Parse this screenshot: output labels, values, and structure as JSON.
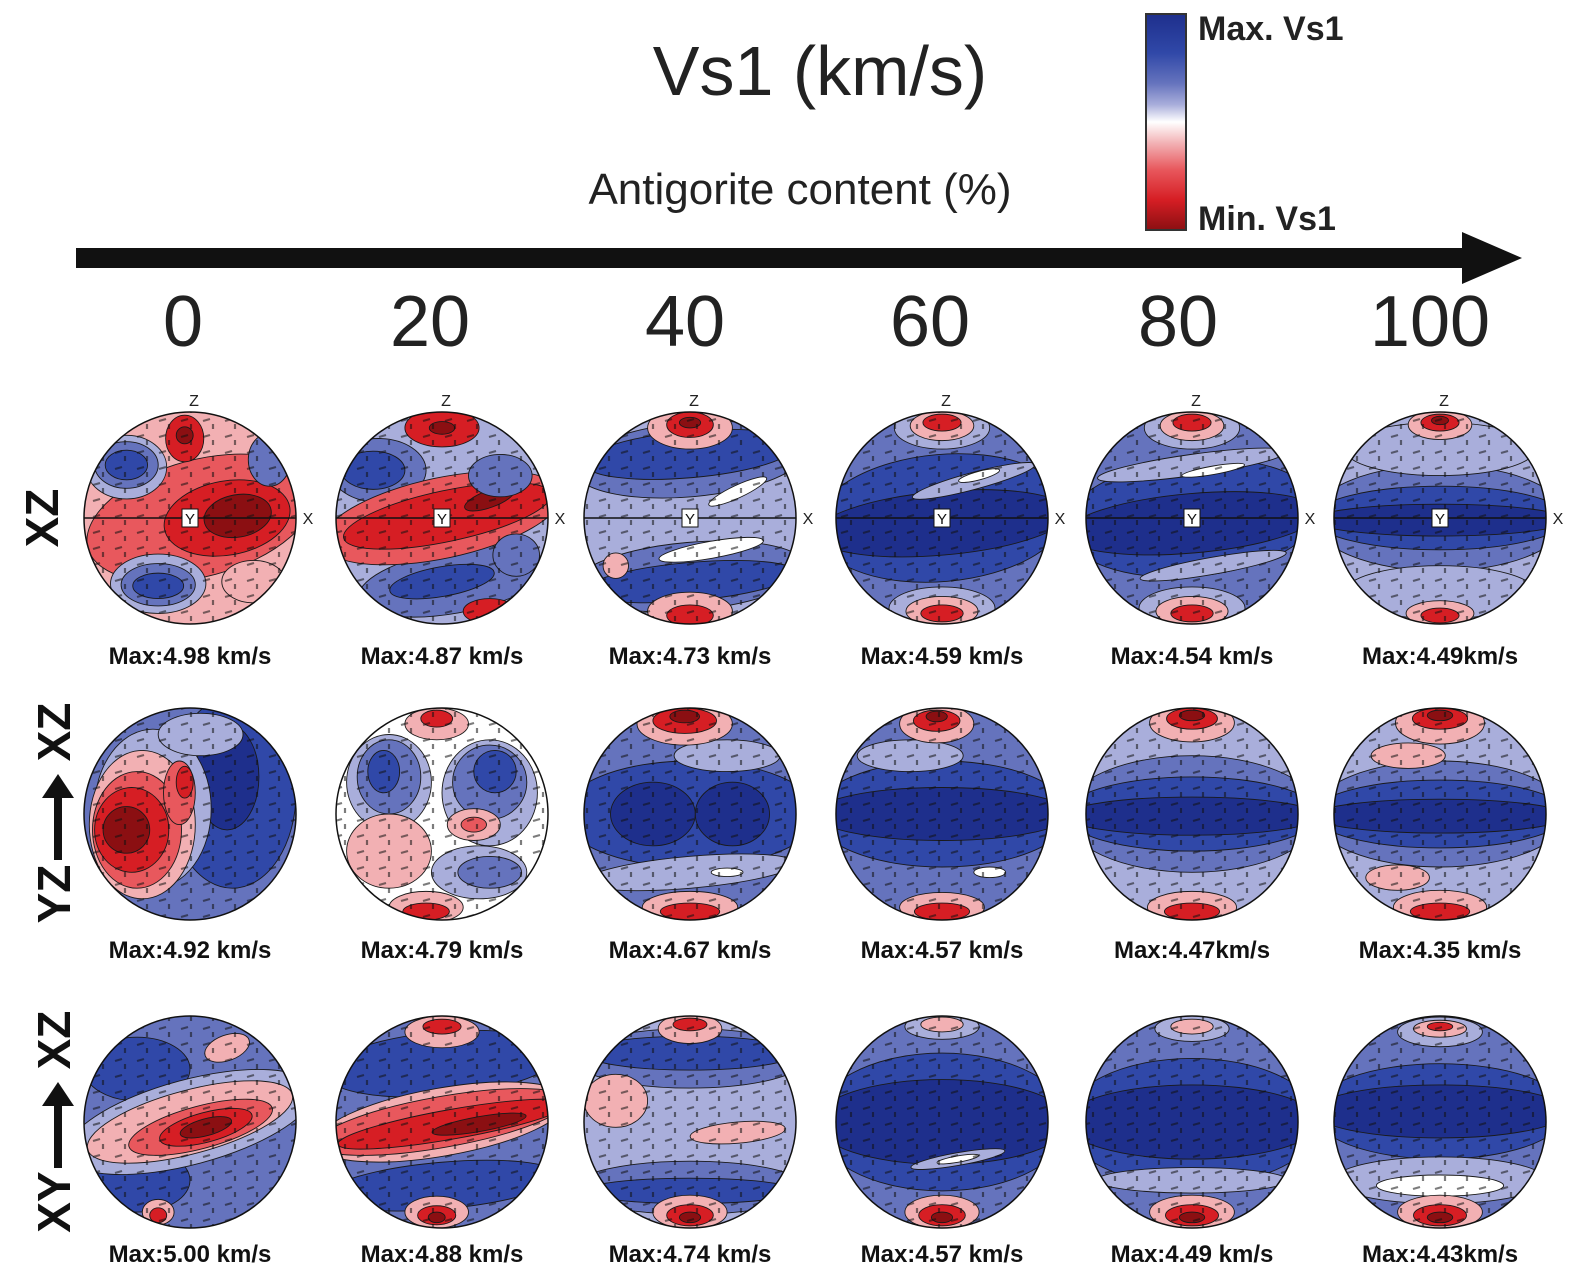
{
  "title": "Vs1 (km/s)",
  "subtitle": "Antigorite content (%)",
  "colorbar": {
    "max_label": "Max. Vs1",
    "min_label": "Min. Vs1",
    "colors": [
      "#1e2f8c",
      "#3048a8",
      "#6573bd",
      "#a9aedb",
      "#ffffff",
      "#f2b0b3",
      "#e8585d",
      "#d61e24",
      "#8b0f12"
    ]
  },
  "antigorite_ticks": [
    "0",
    "20",
    "40",
    "60",
    "80",
    "100"
  ],
  "axis_labels": {
    "z": "Z",
    "x": "X",
    "y": "Y"
  },
  "rows": [
    {
      "label": "XZ",
      "has_axes": true,
      "max_labels": [
        "Max:4.98 km/s",
        "Max:4.87 km/s",
        "Max:4.73 km/s",
        "Max:4.59 km/s",
        "Max:4.54 km/s",
        "Max:4.49km/s"
      ]
    },
    {
      "label_parts": [
        "YZ",
        "XZ"
      ],
      "has_axes": false,
      "max_labels": [
        "Max:4.92 km/s",
        "Max:4.79 km/s",
        "Max:4.67 km/s",
        "Max:4.57 km/s",
        "Max:4.47km/s",
        "Max:4.35 km/s"
      ]
    },
    {
      "label_parts": [
        "XY",
        "XZ"
      ],
      "has_axes": false,
      "max_labels": [
        "Max:5.00 km/s",
        "Max:4.88 km/s",
        "Max:4.74 km/s",
        "Max:4.57 km/s",
        "Max:4.49 km/s",
        "Max:4.43km/s"
      ]
    }
  ]
}
